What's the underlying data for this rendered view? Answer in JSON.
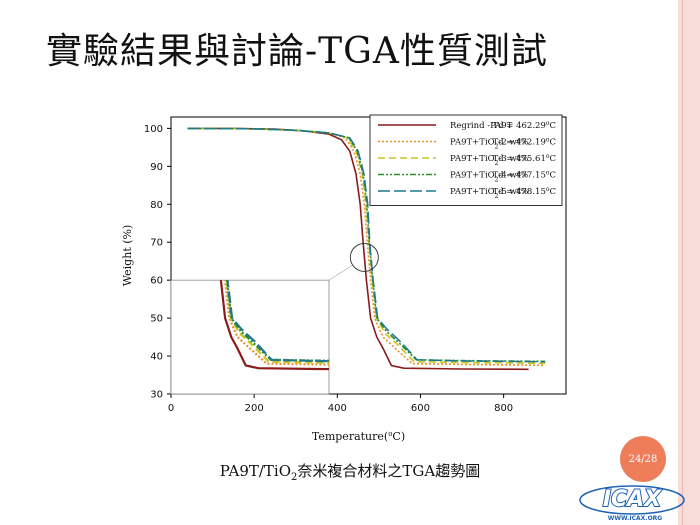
{
  "slide": {
    "title": "實驗結果與討論-TGA性質測試",
    "caption_pre": "PA9T/TiO",
    "caption_sub": "2",
    "caption_post": "奈米複合材料之TGA趨勢圖",
    "page_number": "24/28",
    "logo_text": "ICAX",
    "logo_url": "WWW.ICAX.ORG"
  },
  "colors": {
    "strip": "#f7ddd9",
    "badge": "#ee7e59",
    "logo_blue": "#1e63b5"
  },
  "chart_data": {
    "type": "line",
    "xlabel_pre": "Temperature(",
    "xlabel_sup": "o",
    "xlabel_post": "C)",
    "ylabel": "Weight (%)",
    "xlim": [
      0,
      950
    ],
    "ylim": [
      30,
      103
    ],
    "xticks": [
      0,
      200,
      400,
      600,
      800
    ],
    "yticks": [
      30,
      40,
      50,
      60,
      70,
      80,
      90,
      100
    ],
    "grid": false,
    "legend_position": "top-right",
    "series": [
      {
        "name": "Regrind -PA9T",
        "td_label": "Td = 462.29",
        "color": "#8b1a1a",
        "dash": "",
        "x": [
          40,
          150,
          250,
          320,
          380,
          410,
          430,
          445,
          455,
          462,
          470,
          480,
          495,
          510,
          530,
          560,
          700,
          860
        ],
        "y": [
          100,
          100,
          99.8,
          99.3,
          98.5,
          97,
          94,
          88,
          80,
          70,
          60,
          50,
          45,
          42,
          37.5,
          36.8,
          36.6,
          36.5
        ]
      },
      {
        "name": "PA9T+TiO2-2 wt%",
        "td_label": "Td = 472.19",
        "color": "#e8902a",
        "dash": "2,2",
        "x": [
          40,
          200,
          300,
          380,
          420,
          440,
          455,
          465,
          472,
          480,
          490,
          510,
          540,
          580,
          700,
          900
        ],
        "y": [
          100,
          99.9,
          99.5,
          98.8,
          97.5,
          94,
          88,
          80,
          70,
          60,
          50,
          45,
          42,
          38,
          37.8,
          37.6
        ]
      },
      {
        "name": "PA9T+TiO2-3 wt%",
        "td_label": "Td = 475.61",
        "color": "#c9c421",
        "dash": "7,4",
        "x": [
          40,
          200,
          300,
          380,
          425,
          445,
          460,
          469,
          476,
          484,
          494,
          515,
          545,
          585,
          700,
          900
        ],
        "y": [
          100,
          99.9,
          99.5,
          98.8,
          97.5,
          94,
          88,
          80,
          70,
          60,
          50,
          46,
          43,
          38.5,
          38.3,
          38.1
        ]
      },
      {
        "name": "PA9T+TiO2-4 wt%",
        "td_label": "Td = 477.15",
        "color": "#2e8b2e",
        "dash": "6,2,2,2,2,2",
        "x": [
          40,
          200,
          300,
          380,
          428,
          448,
          462,
          471,
          477,
          485,
          495,
          518,
          548,
          590,
          700,
          900
        ],
        "y": [
          100,
          99.9,
          99.5,
          98.8,
          97.5,
          94,
          88,
          80,
          70,
          60,
          50,
          46.5,
          43.5,
          39,
          38.8,
          38.6
        ]
      },
      {
        "name": "PA9T+TiO2-5 wt%",
        "td_label": "Td = 478.15",
        "color": "#1f7a8c",
        "dash": "12,4",
        "x": [
          40,
          200,
          300,
          380,
          430,
          450,
          464,
          473,
          478,
          486,
          497,
          520,
          550,
          592,
          700,
          900
        ],
        "y": [
          100,
          99.9,
          99.5,
          98.8,
          97.5,
          94,
          88,
          80,
          70,
          60,
          50,
          47,
          44,
          39,
          38.7,
          38.5
        ]
      }
    ],
    "inset": {
      "x_offset": -350,
      "y_top": 60,
      "x_right": 380
    }
  }
}
